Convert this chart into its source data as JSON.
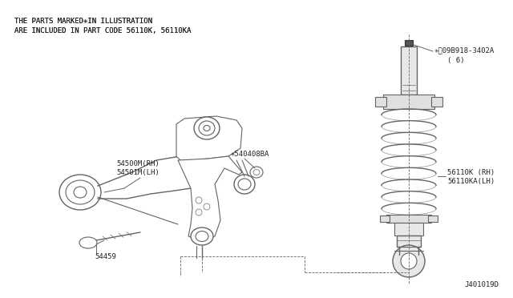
{
  "bg_color": "#ffffff",
  "fig_width": 6.4,
  "fig_height": 3.72,
  "dpi": 100,
  "header_line1": "THE PARTS MARKED✳IN ILLUSTRATION",
  "header_line2": "ARE INCLUDED IN PART CODE 56110K, 56110KA",
  "footer_text": "J401019D",
  "label_54500M_line1": "54500M(RH)",
  "label_54500M_line2": "54501M(LH)",
  "label_540408BA": "✳540408BA",
  "label_54459": "54459",
  "label_56110K_line1": "56110K (RH)",
  "label_56110K_line2": "56110KA(LH)",
  "label_08918_line1": "✳Ⓢ09B918-3402A",
  "label_08918_line2": "( 6)",
  "line_color_rgb": [
    100,
    100,
    100
  ],
  "dark_rgb": [
    50,
    50,
    50
  ],
  "bg_rgb": [
    255,
    255,
    255
  ]
}
